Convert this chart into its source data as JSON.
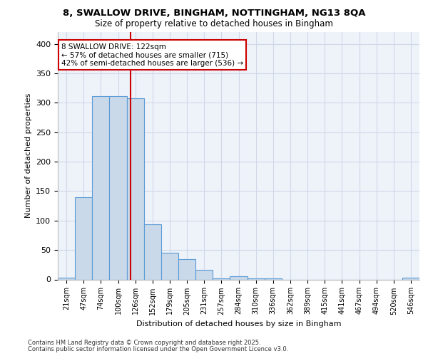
{
  "title1": "8, SWALLOW DRIVE, BINGHAM, NOTTINGHAM, NG13 8QA",
  "title2": "Size of property relative to detached houses in Bingham",
  "xlabel": "Distribution of detached houses by size in Bingham",
  "ylabel": "Number of detached properties",
  "bins": [
    "21sqm",
    "47sqm",
    "74sqm",
    "100sqm",
    "126sqm",
    "152sqm",
    "179sqm",
    "205sqm",
    "231sqm",
    "257sqm",
    "284sqm",
    "310sqm",
    "336sqm",
    "362sqm",
    "389sqm",
    "415sqm",
    "441sqm",
    "467sqm",
    "494sqm",
    "520sqm",
    "546sqm"
  ],
  "counts": [
    3,
    139,
    311,
    311,
    308,
    94,
    45,
    35,
    16,
    2,
    6,
    2,
    2,
    0,
    0,
    0,
    0,
    0,
    0,
    0,
    3
  ],
  "bar_color": "#c9d9ea",
  "bar_edge_color": "#5b9bd5",
  "vline_color": "#cc0000",
  "vline_xindex": 3.72,
  "annotation_text": "8 SWALLOW DRIVE: 122sqm\n← 57% of detached houses are smaller (715)\n42% of semi-detached houses are larger (536) →",
  "annotation_box_color": "white",
  "annotation_box_edge_color": "#cc0000",
  "ylim": [
    0,
    420
  ],
  "yticks": [
    0,
    50,
    100,
    150,
    200,
    250,
    300,
    350,
    400
  ],
  "grid_color": "#d0d8e8",
  "bg_color": "#eef2f9",
  "footer1": "Contains HM Land Registry data © Crown copyright and database right 2025.",
  "footer2": "Contains public sector information licensed under the Open Government Licence v3.0."
}
